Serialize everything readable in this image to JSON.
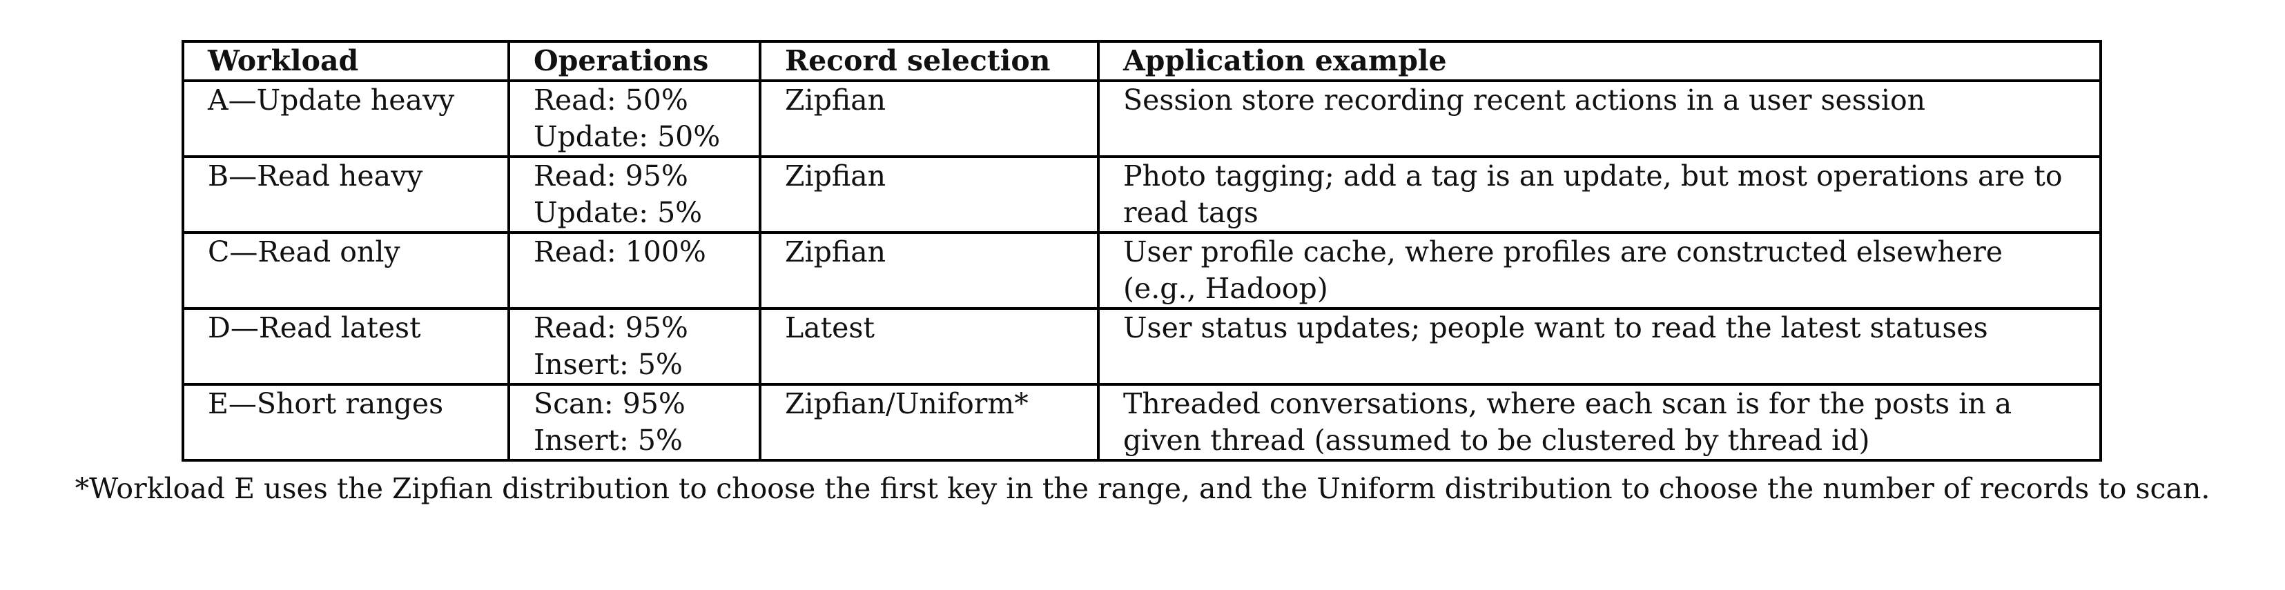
{
  "table": {
    "headers": [
      "Workload",
      "Operations",
      "Record selection",
      "Application example"
    ],
    "rows": [
      {
        "workload": "A—Update heavy",
        "operations": [
          "Read: 50%",
          "Update: 50%"
        ],
        "record_selection": "Zipfian",
        "application_example": "Session store recording recent actions in a user session"
      },
      {
        "workload": "B—Read heavy",
        "operations": [
          "Read: 95%",
          "Update: 5%"
        ],
        "record_selection": "Zipfian",
        "application_example": "Photo tagging; add a tag is an update, but most operations are to read tags"
      },
      {
        "workload": "C—Read only",
        "operations": [
          "Read: 100%"
        ],
        "record_selection": "Zipfian",
        "application_example": "User profile cache, where profiles are constructed elsewhere (e.g., Hadoop)"
      },
      {
        "workload": "D—Read latest",
        "operations": [
          "Read: 95%",
          "Insert: 5%"
        ],
        "record_selection": "Latest",
        "application_example": "User status updates; people want to read the latest statuses"
      },
      {
        "workload": "E—Short ranges",
        "operations": [
          "Scan: 95%",
          "Insert: 5%"
        ],
        "record_selection": "Zipfian/Uniform*",
        "application_example": "Threaded conversations, where each scan is for the posts in a given thread (assumed to be clustered by thread id)"
      }
    ]
  },
  "footnote": "*Workload E uses the Zipfian distribution to choose the first key in the range, and the Uniform distribution to choose the number of records to scan."
}
